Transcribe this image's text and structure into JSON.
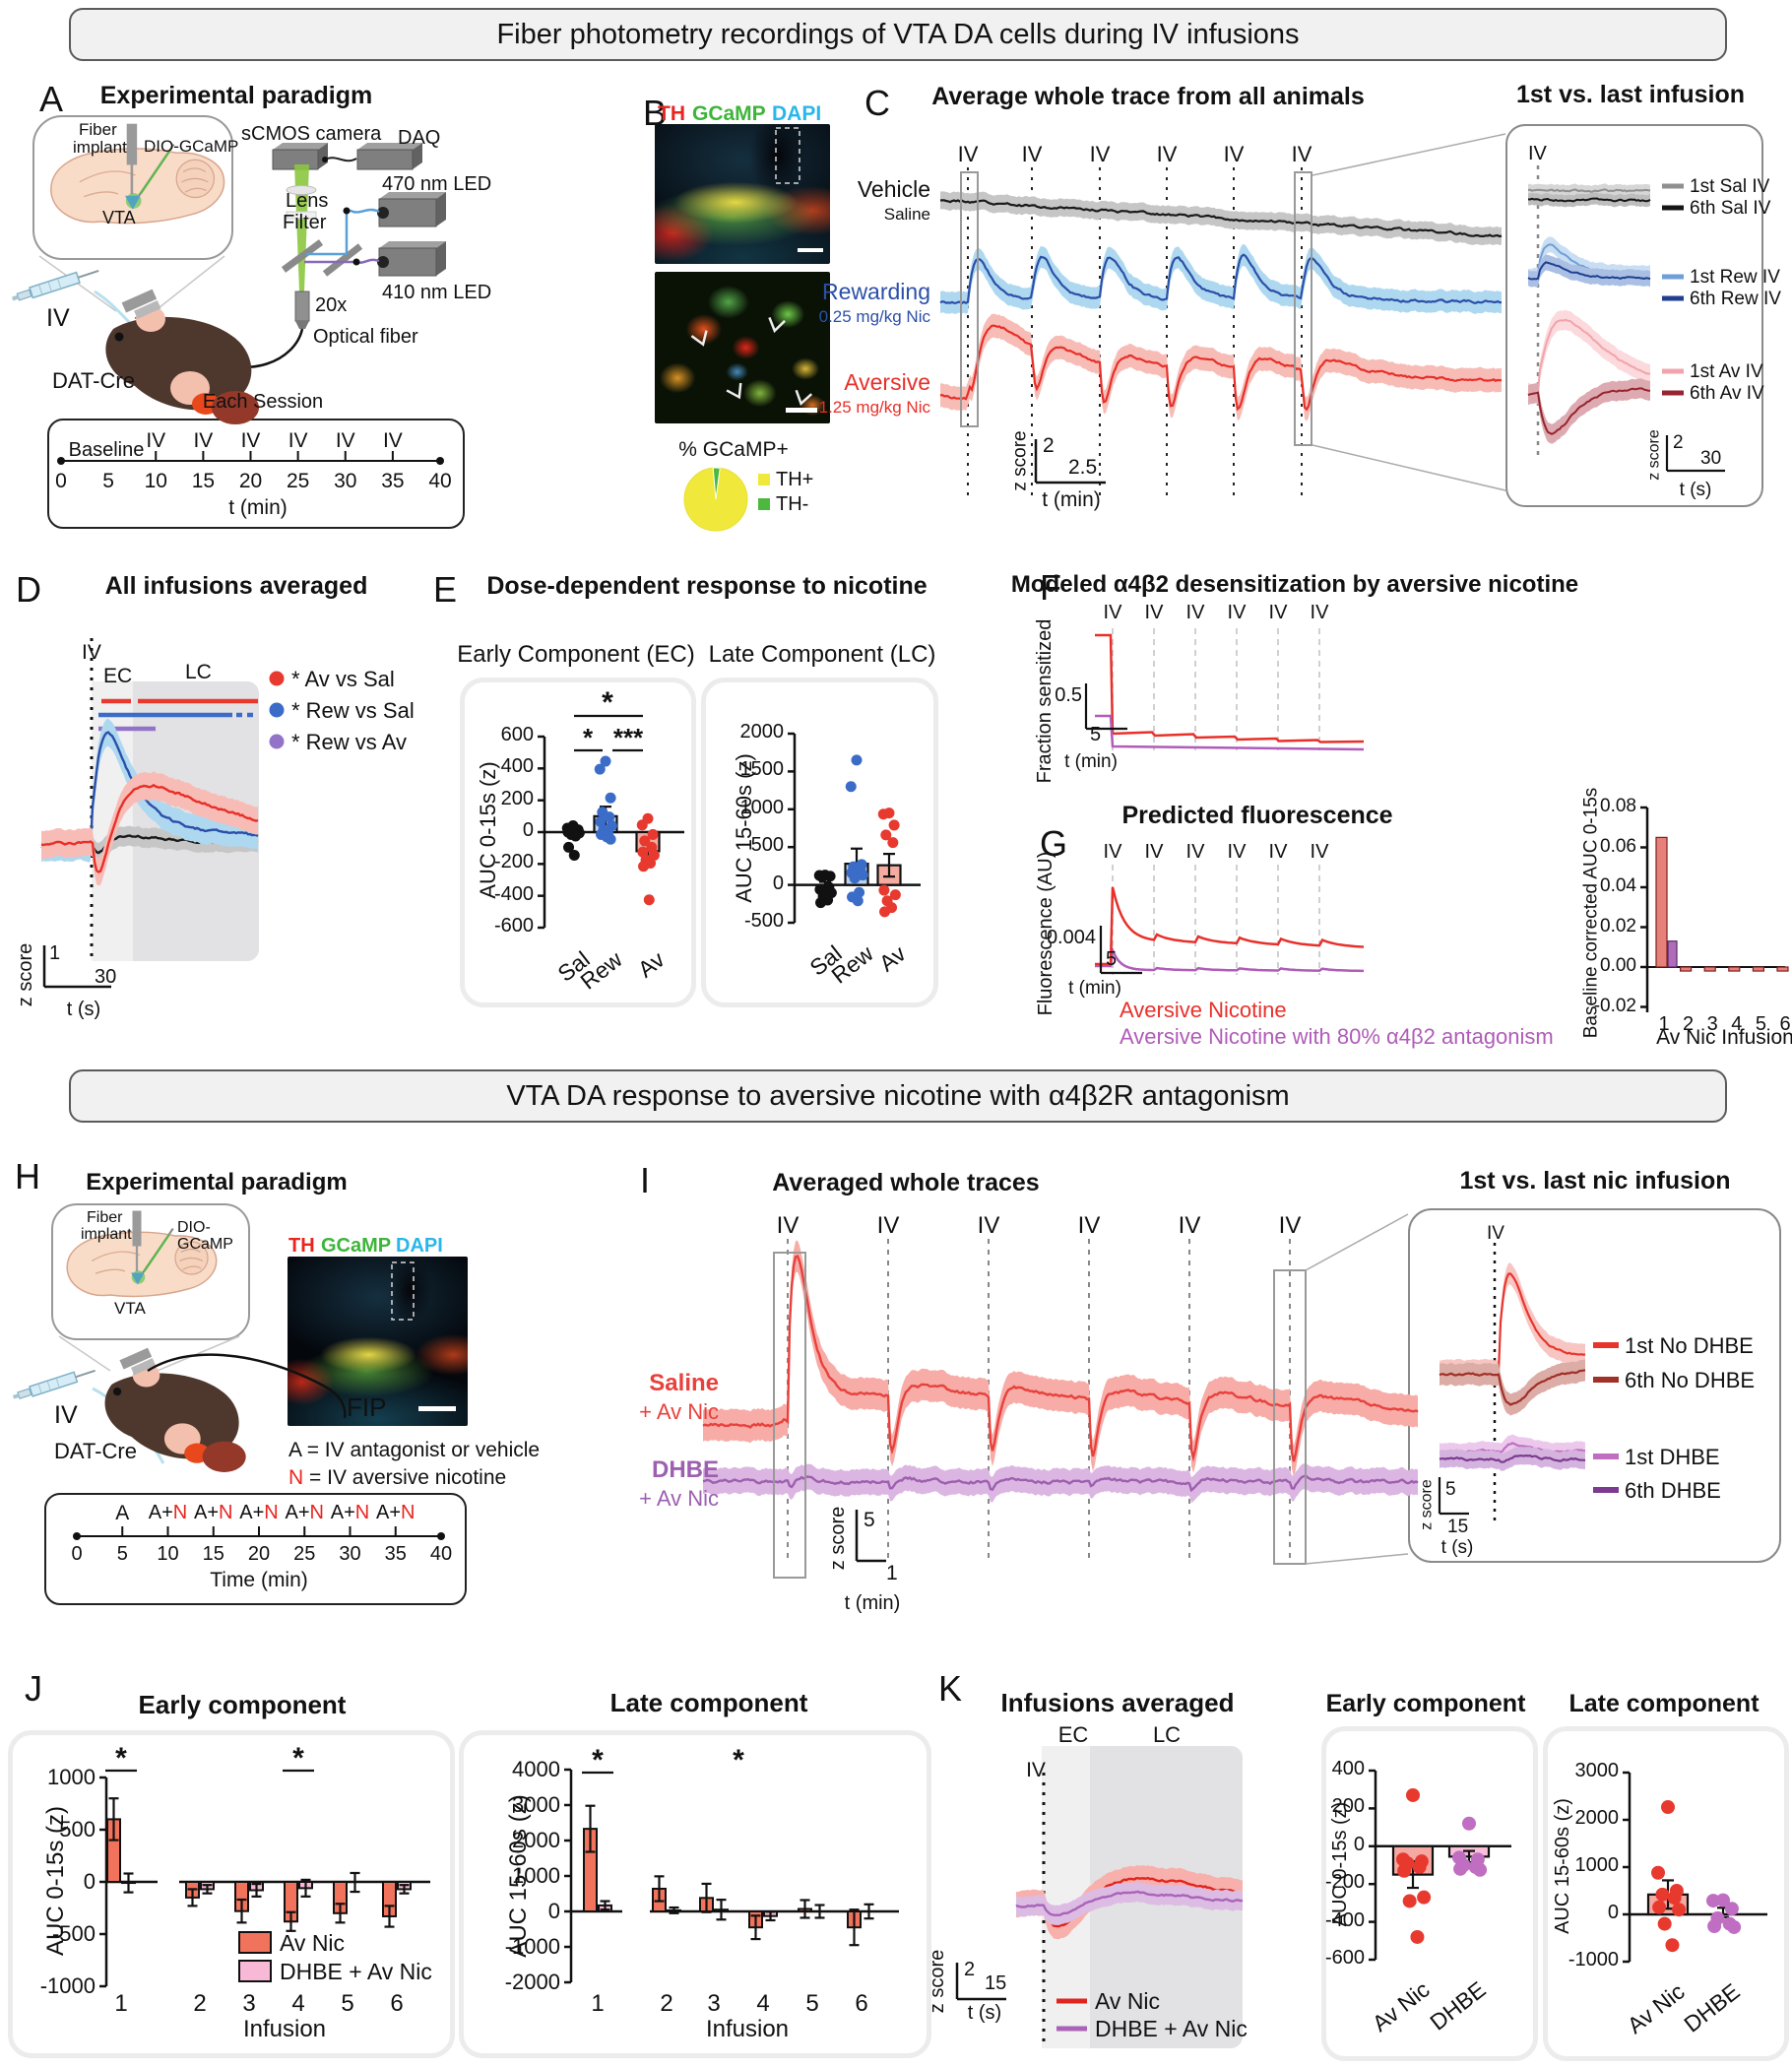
{
  "banners": {
    "section1": "Fiber photometry recordings of VTA DA cells during IV infusions",
    "section2": "VTA DA response to aversive nicotine with α4β2R antagonism"
  },
  "panelA": {
    "letter": "A",
    "title": "Experimental paradigm",
    "labels": {
      "fiber1": "Fiber",
      "fiber2": "implant",
      "dio": "DIO-GCaMP",
      "vta": "VTA",
      "scmos": "sCMOS camera",
      "daq": "DAQ",
      "led470": "470 nm LED",
      "led410": "410 nm LED",
      "lens": "Lens",
      "filter": "Filter",
      "objective": "20x",
      "optical_fiber": "Optical fiber",
      "iv": "IV",
      "mouse": "DAT-Cre",
      "session": "Each Session"
    },
    "timeline": {
      "baseline": "Baseline",
      "infusion": "IV",
      "infusion_times": [
        10,
        15,
        20,
        25,
        30,
        35
      ],
      "ticks": [
        0,
        5,
        10,
        15,
        20,
        25,
        30,
        35,
        40
      ],
      "axis": "t (min)"
    }
  },
  "panelB": {
    "letter": "B",
    "stains": [
      {
        "label": "TH",
        "color": "#e8251f"
      },
      {
        "label": "GCaMP",
        "color": "#3db53a"
      },
      {
        "label": "DAPI",
        "color": "#29b7ea"
      }
    ],
    "pie": {
      "title": "% GCaMP+",
      "slices": [
        {
          "label": "TH+",
          "value": 96.5,
          "color": "#f0e83a"
        },
        {
          "label": "TH-",
          "value": 3.5,
          "color": "#4db83e"
        }
      ]
    }
  },
  "panelC": {
    "letter": "C",
    "title": "Average whole trace from all animals",
    "iv": "IV",
    "traces": [
      {
        "label": "Vehicle",
        "sub": "Saline",
        "color": "#1a1a1a"
      },
      {
        "label": "Rewarding",
        "sub": "0.25 mg/kg Nic",
        "color": "#2b4fa8"
      },
      {
        "label": "Aversive",
        "sub": "1.25 mg/kg Nic",
        "color": "#e72f28"
      }
    ],
    "scale": {
      "z": "2",
      "t": "2.5",
      "zlabel": "z score",
      "tlabel": "t (min)"
    },
    "inset": {
      "title": "1st vs. last infusion",
      "iv": "IV",
      "scale": {
        "z": "2",
        "t": "30",
        "zlabel": "z score",
        "tlabel": "t (s)"
      }
    }
  },
  "panelD": {
    "letter": "D",
    "title": "All infusions averaged",
    "iv": "IV",
    "ec": "EC",
    "lc": "LC",
    "scale": {
      "z": "1",
      "t": "30",
      "zlabel": "z score",
      "tlabel": "t (s)"
    }
  },
  "panelE": {
    "letter": "E",
    "title": "Dose-dependent response to nicotine"
  },
  "panelF": {
    "letter": "F",
    "title": "Modeled α4β2 desensitization by aversive nicotine",
    "iv": "IV",
    "ylabel": "Fraction sensitized",
    "scale": {
      "v": "0.5",
      "t": "5",
      "tlabel": "t (min)"
    }
  },
  "panelG": {
    "letter": "G",
    "title": "Predicted fluorescence",
    "iv": "IV",
    "ylabel": "Fluorescence (AU)",
    "scale": {
      "v": "0.004",
      "t": "5",
      "tlabel": "t (min)"
    }
  },
  "panelH": {
    "letter": "H",
    "title": "Experimental paradigm",
    "labels": {
      "fiber1": "Fiber",
      "fiber2": "implant",
      "dio1": "DIO-",
      "dio2": "GCaMP",
      "vta": "VTA",
      "iv": "IV",
      "fip": "FIP",
      "mouse": "DAT-Cre"
    },
    "stains": [
      {
        "label": "TH",
        "color": "#e8251f"
      },
      {
        "label": "GCaMP",
        "color": "#3db53a"
      },
      {
        "label": "DAPI",
        "color": "#29b7ea"
      }
    ],
    "key": {
      "a_prefix": "A",
      "a_rest": " = IV antagonist or vehicle",
      "n_prefix": "N",
      "n_rest": " = IV aversive nicotine",
      "n_color": "#e8251f"
    },
    "timeline": {
      "first": "A",
      "combo_a": "A+",
      "combo_n": "N",
      "combo_times": [
        10,
        15,
        20,
        25,
        30,
        35
      ],
      "ticks": [
        0,
        5,
        10,
        15,
        20,
        25,
        30,
        35,
        40
      ],
      "axis": "Time (min)"
    }
  },
  "panelI": {
    "letter": "I",
    "title": "Averaged whole traces",
    "iv": "IV",
    "traces": [
      {
        "label": "Saline",
        "sub": "+ Av Nic",
        "color": "#e8413c"
      },
      {
        "label": "DHBE",
        "sub": "+ Av Nic",
        "color": "#9d5fb0"
      }
    ],
    "scale": {
      "z": "5",
      "t": "1",
      "zlabel": "z score",
      "tlabel": "t (min)"
    },
    "inset": {
      "title": "1st vs. last nic infusion",
      "iv": "IV",
      "scale": {
        "z": "5",
        "t": "15",
        "zlabel": "z score",
        "tlabel": "t (s)"
      }
    }
  },
  "panelJ": {
    "letter": "J"
  },
  "panelK": {
    "letter": "K",
    "title": "Infusions averaged",
    "ec": "EC",
    "lc": "LC",
    "iv": "IV",
    "scale": {
      "z": "2",
      "t": "15",
      "zlabel": "z score",
      "tlabel": "t (s)"
    }
  },
  "chart_data": {
    "C": {
      "type": "line",
      "title": "Average whole trace from all animals",
      "x_axis": "t (min)",
      "session_min": 40,
      "infusion_times_min": [
        10,
        15,
        20,
        25,
        30,
        35
      ],
      "series": [
        {
          "name": "Vehicle (Saline)",
          "color": "#1a1a1a",
          "band": "#c6c6c6",
          "behavior": "flat, slow downward drift, no IV response"
        },
        {
          "name": "Rewarding 0.25 mg/kg Nic",
          "color": "#2b4fa8",
          "band": "#aed8f0",
          "behavior": "fast transient peak ~2 z after each IV"
        },
        {
          "name": "Aversive 1.25 mg/kg Nic",
          "color": "#e72f28",
          "band": "#f8bcb6",
          "behavior": "sharp dip then prolonged elevation after each IV"
        }
      ],
      "scalebar": {
        "z": 2,
        "t_min": 2.5
      }
    },
    "C_inset": {
      "type": "line",
      "title": "1st vs. last infusion",
      "series": [
        {
          "name": "1st Sal IV",
          "color": "#8f8f8f",
          "band": "#d6d6d6"
        },
        {
          "name": "6th Sal IV",
          "color": "#151515",
          "band": "#bdbdbd"
        },
        {
          "name": "1st Rew IV",
          "color": "#6f9fd8",
          "band": "#c9def2"
        },
        {
          "name": "6th Rew IV",
          "color": "#203f90",
          "band": "#a9c0e4"
        },
        {
          "name": "1st Av IV",
          "color": "#f2a3ab",
          "band": "#fbd9dc"
        },
        {
          "name": "6th Av IV",
          "color": "#97242e",
          "band": "#dcaab0"
        }
      ],
      "scalebar": {
        "z": 2,
        "t_s": 30
      }
    },
    "D": {
      "type": "line",
      "title": "All infusions averaged",
      "comparisons": [
        {
          "label": "* Av vs Sal",
          "color": "#e8392f"
        },
        {
          "label": "* Rew vs Sal",
          "color": "#3a6cc8"
        },
        {
          "label": "* Rew vs Av",
          "color": "#9273c8"
        }
      ],
      "series": [
        {
          "name": "Sal",
          "color": "#1a1a1a",
          "band": "#c6c6c6"
        },
        {
          "name": "Rew",
          "color": "#2b4fa8",
          "band": "#aed8f0"
        },
        {
          "name": "Av",
          "color": "#e72f28",
          "band": "#f8bcb6"
        }
      ],
      "scalebar": {
        "z": 1,
        "t_s": 30
      }
    },
    "E_EC": {
      "type": "scatter-bar",
      "title": "Early Component (EC)",
      "ylabel": "AUC 0-15s (z)",
      "yticks": [
        600,
        400,
        200,
        0,
        -200,
        -400,
        -600
      ],
      "categories": [
        "Sal",
        "Rew",
        "Av"
      ],
      "means": [
        -5,
        100,
        -120
      ],
      "sems": [
        25,
        60,
        40
      ],
      "colors": [
        "#111111",
        "#3a6cc8",
        "#e8392f"
      ],
      "bar_fills": [
        "#ffffff",
        "#bdd3ec",
        "#f5ab9f"
      ],
      "points": [
        [
          40,
          25,
          15,
          10,
          5,
          0,
          -5,
          -15,
          -25,
          -95,
          -145
        ],
        [
          445,
          395,
          215,
          125,
          95,
          65,
          40,
          15,
          -5,
          -15,
          -30,
          -45
        ],
        [
          85,
          45,
          -15,
          -55,
          -95,
          -125,
          -145,
          -175,
          -195,
          -215,
          -425
        ]
      ],
      "sig": [
        {
          "a": "Sal",
          "b": "Rew",
          "label": "*"
        },
        {
          "a": "Rew",
          "b": "Av",
          "label": "***"
        },
        {
          "a": "Sal",
          "b": "Av",
          "label": "*"
        }
      ]
    },
    "E_LC": {
      "type": "scatter-bar",
      "title": "Late Component (LC)",
      "ylabel": "AUC 15-60s (z)",
      "yticks": [
        2000,
        1500,
        1000,
        500,
        0,
        -500
      ],
      "categories": [
        "Sal",
        "Rew",
        "Av"
      ],
      "means": [
        -20,
        280,
        260
      ],
      "sems": [
        60,
        200,
        150
      ],
      "colors": [
        "#111111",
        "#3a6cc8",
        "#e8392f"
      ],
      "bar_fills": [
        "#ffffff",
        "#bdd3ec",
        "#f5ab9f"
      ],
      "points": [
        [
          130,
          125,
          115,
          105,
          -30,
          -60,
          -105,
          -150,
          -200,
          -235
        ],
        [
          1650,
          1300,
          270,
          240,
          210,
          160,
          130,
          90,
          -100,
          -160,
          -210
        ],
        [
          950,
          935,
          790,
          660,
          560,
          -70,
          -130,
          -210,
          -300,
          -355
        ]
      ]
    },
    "F": {
      "type": "line",
      "title": "Modeled α4β2 desensitization by aversive nicotine",
      "ylabel": "Fraction sensitized",
      "series": [
        {
          "name": "Aversive Nicotine",
          "color": "#e8302a",
          "start": 1.0,
          "after_first_iv": 0.07
        },
        {
          "name": "Aversive Nicotine with 80% α4β2 antagonism",
          "color": "#b05cb8",
          "start": 0.45,
          "after_first_iv": 0.04
        }
      ],
      "scalebar": {
        "fraction": 0.5,
        "t_min": 5
      }
    },
    "G": {
      "type": "line",
      "title": "Predicted fluorescence",
      "ylabel": "Fluorescence (AU)",
      "series": [
        {
          "name": "Aversive Nicotine",
          "color": "#e8302a"
        },
        {
          "name": "Aversive Nicotine with 80% α4β2 antagonism",
          "color": "#b05cb8"
        }
      ],
      "scalebar": {
        "au": 0.004,
        "t_min": 5
      }
    },
    "G_bars": {
      "type": "bar",
      "ylabel": "Baseline corrected AUC 0-15s",
      "xlabel": "Av Nic Infusion",
      "categories": [
        1,
        2,
        3,
        4,
        5,
        6
      ],
      "yticks": [
        0.08,
        0.06,
        0.04,
        0.02,
        0,
        -0.02
      ],
      "series": [
        {
          "name": "Aversive Nicotine",
          "color": "#e8807a",
          "values": [
            0.065,
            -0.002,
            -0.002,
            -0.002,
            -0.002,
            -0.002
          ]
        },
        {
          "name": "Aversive Nicotine with 80% α4β2 antagonism",
          "color": "#b06cb8",
          "values": [
            0.013,
            0,
            0,
            0,
            0,
            0
          ]
        }
      ]
    },
    "I": {
      "type": "line",
      "title": "Averaged whole traces",
      "series": [
        {
          "name": "Saline + Av Nic",
          "color": "#e8413c",
          "band": "#f7aca7",
          "behavior": "large first peak then dips at each IV"
        },
        {
          "name": "DHBE + Av Nic",
          "color": "#9d5fb0",
          "band": "#dcb6e2",
          "behavior": "flat, blunted responses"
        }
      ],
      "scalebar": {
        "z": 5,
        "t_min": 1
      }
    },
    "I_inset": {
      "type": "line",
      "title": "1st vs. last nic infusion",
      "series": [
        {
          "name": "1st No DHBE",
          "color": "#e8352c",
          "band": "#f8c6c2"
        },
        {
          "name": "6th No DHBE",
          "color": "#a03028",
          "band": "#dcaca6"
        },
        {
          "name": "1st  DHBE",
          "color": "#c06ec2",
          "band": "#ecc9ec"
        },
        {
          "name": "6th  DHBE",
          "color": "#7c3a90",
          "band": "#d4b4de"
        }
      ],
      "scalebar": {
        "z": 5,
        "t_s": 15
      }
    },
    "J_EC": {
      "type": "grouped-bar",
      "title": "Early component",
      "ylabel": "AUC 0-15s (z)",
      "xlabel": "Infusion",
      "yticks": [
        1000,
        500,
        0,
        -500,
        -1000
      ],
      "categories": [
        1,
        2,
        3,
        4,
        5,
        6
      ],
      "series": [
        {
          "name": "Av Nic",
          "color": "#f2735c",
          "values": [
            600,
            -150,
            -280,
            -380,
            -300,
            -330
          ],
          "sems": [
            200,
            80,
            110,
            90,
            90,
            100
          ]
        },
        {
          "name": "DHBE + Av Nic",
          "color": "#f8b9d6",
          "values": [
            -10,
            -70,
            -80,
            -60,
            -5,
            -70
          ],
          "sems": [
            90,
            40,
            60,
            80,
            90,
            40
          ]
        }
      ],
      "sig": [
        {
          "at": 1,
          "underline": true,
          "label": "*"
        },
        {
          "at": 4,
          "underline": true,
          "label": "*"
        }
      ]
    },
    "J_LC": {
      "type": "grouped-bar",
      "title": "Late component",
      "ylabel": "AUC 15-60s (z)",
      "xlabel": "Infusion",
      "yticks": [
        4000,
        3000,
        2000,
        1000,
        0,
        -1000,
        -2000
      ],
      "categories": [
        1,
        2,
        3,
        4,
        5,
        6
      ],
      "series": [
        {
          "name": "Av Nic",
          "color": "#f2735c",
          "values": [
            2330,
            640,
            380,
            -450,
            70,
            -450
          ],
          "sems": [
            650,
            350,
            400,
            330,
            250,
            500
          ]
        },
        {
          "name": "DHBE + Av Nic",
          "color": "#f8b9d6",
          "values": [
            170,
            30,
            50,
            -130,
            0,
            0
          ],
          "sems": [
            120,
            80,
            280,
            120,
            180,
            200
          ]
        }
      ],
      "sig": [
        {
          "at": 1,
          "underline": true,
          "label": "*"
        },
        {
          "at": 3.5,
          "underline": false,
          "label": "*"
        }
      ]
    },
    "K_trace": {
      "type": "line",
      "title": "Infusions averaged",
      "series": [
        {
          "name": "Av Nic",
          "color": "#e02520",
          "band": "#f8b0ac"
        },
        {
          "name": "DHBE + Av Nic",
          "color": "#a964b8",
          "band": "#ddbce4"
        }
      ],
      "scalebar": {
        "z": 2,
        "t_s": 15
      }
    },
    "K_EC": {
      "type": "scatter-bar",
      "title": "Early component",
      "ylabel": "AUC 0-15s (z)",
      "yticks": [
        400,
        200,
        0,
        -200,
        -400,
        -600
      ],
      "categories": [
        "Av Nic",
        "DHBE"
      ],
      "means": [
        -150,
        -55
      ],
      "sems": [
        70,
        30
      ],
      "colors": [
        "#e8392f",
        "#c06ec2"
      ],
      "bar_fills": [
        "#f5a9a2",
        "#f8c0da"
      ],
      "points": [
        [
          270,
          -70,
          -80,
          -90,
          -110,
          -130,
          -270,
          -290,
          -480
        ],
        [
          120,
          -60,
          -70,
          -100,
          -110,
          -120,
          -125
        ]
      ]
    },
    "K_LC": {
      "type": "scatter-bar",
      "title": "Late component",
      "ylabel": "AUC 15-60s (z)",
      "yticks": [
        3000,
        2000,
        1000,
        0,
        -1000
      ],
      "categories": [
        "Av Nic",
        "DHBE"
      ],
      "means": [
        420,
        40
      ],
      "sems": [
        300,
        100
      ],
      "colors": [
        "#e8392f",
        "#c06ec2"
      ],
      "bar_fills": [
        "#f5a9a2",
        "#f8c0da"
      ],
      "points": [
        [
          2270,
          880,
          500,
          420,
          350,
          150,
          100,
          -200,
          -650
        ],
        [
          300,
          290,
          120,
          -80,
          -200,
          -250,
          -270
        ]
      ]
    }
  }
}
